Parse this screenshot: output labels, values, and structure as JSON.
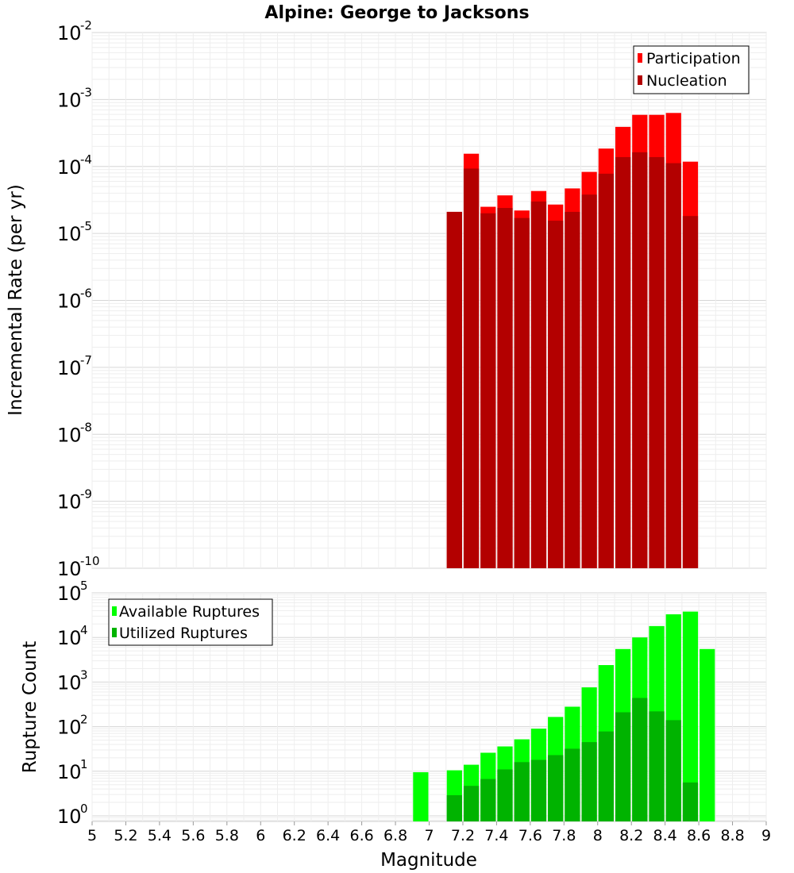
{
  "title": "Alpine: George to Jacksons",
  "x_axis": {
    "label": "Magnitude",
    "range": [
      5,
      9
    ],
    "ticks": [
      "5",
      "5.2",
      "5.4",
      "5.6",
      "5.8",
      "6",
      "6.2",
      "6.4",
      "6.6",
      "6.8",
      "7",
      "7.2",
      "7.4",
      "7.6",
      "7.8",
      "8",
      "8.2",
      "8.4",
      "8.6",
      "8.8",
      "9"
    ]
  },
  "chart_data": [
    {
      "type": "bar",
      "panel": "top",
      "ylabel": "Incremental Rate (per yr)",
      "yscale": "log",
      "ylim": [
        1e-10,
        0.01
      ],
      "ytick_exponents": [
        "-10",
        "-9",
        "-8",
        "-7",
        "-6",
        "-5",
        "-4",
        "-3",
        "-2"
      ],
      "ytick_base": "10",
      "grid": true,
      "legend_position": "top-right",
      "x": [
        7.15,
        7.25,
        7.35,
        7.45,
        7.55,
        7.65,
        7.75,
        7.85,
        7.95,
        8.05,
        8.15,
        8.25,
        8.35,
        8.45,
        8.55
      ],
      "series": [
        {
          "name": "Participation",
          "color": "#ff0000",
          "values": [
            2.1e-05,
            0.000155,
            2.5e-05,
            3.7e-05,
            2.2e-05,
            4.3e-05,
            2.7e-05,
            4.7e-05,
            8.3e-05,
            0.000185,
            0.00039,
            0.00059,
            0.00059,
            0.00063,
            0.000118
          ]
        },
        {
          "name": "Nucleation",
          "color": "#b30000",
          "values": [
            2.1e-05,
            9.3e-05,
            2e-05,
            2.4e-05,
            1.7e-05,
            3e-05,
            1.55e-05,
            2.1e-05,
            3.8e-05,
            7.8e-05,
            0.000138,
            0.000163,
            0.000138,
            0.000112,
            1.82e-05
          ]
        }
      ]
    },
    {
      "type": "bar",
      "panel": "bottom",
      "ylabel": "Rupture Count",
      "yscale": "log",
      "ylim": [
        0.75,
        100000.0
      ],
      "ytick_exponents": [
        "0",
        "1",
        "2",
        "3",
        "4",
        "5"
      ],
      "ytick_base": "10",
      "grid": true,
      "legend_position": "top-left",
      "x": [
        6.95,
        7.15,
        7.25,
        7.35,
        7.45,
        7.55,
        7.65,
        7.75,
        7.85,
        7.95,
        8.05,
        8.15,
        8.25,
        8.35,
        8.45,
        8.55,
        8.65
      ],
      "series": [
        {
          "name": "Available Ruptures",
          "color": "#00ff00",
          "values": [
            9.5,
            10.5,
            14,
            26,
            36,
            52,
            90,
            165,
            280,
            760,
            2400,
            5500,
            10000,
            18000,
            33000,
            38000,
            5500
          ]
        },
        {
          "name": "Utilized Ruptures",
          "color": "#00b300",
          "values": [
            null,
            2.9,
            4.7,
            6.7,
            11,
            16,
            18,
            23,
            32,
            45,
            78,
            210,
            440,
            220,
            140,
            5.6,
            null
          ]
        }
      ]
    }
  ]
}
